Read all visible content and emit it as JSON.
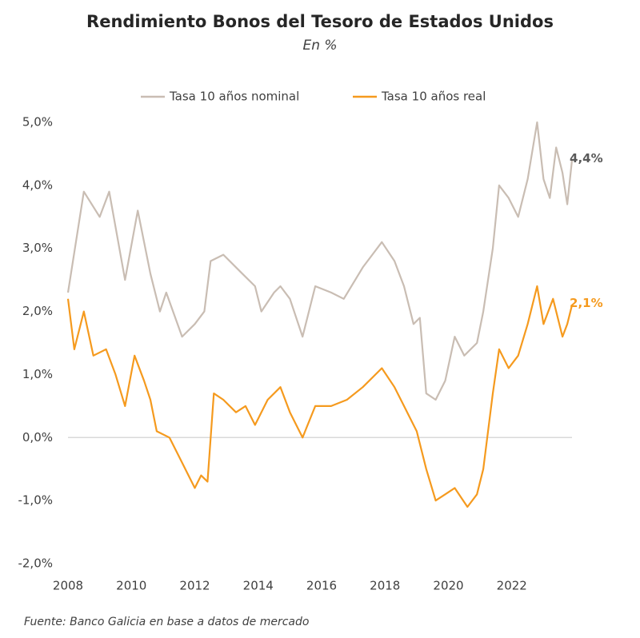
{
  "chart_data": {
    "type": "line",
    "title": "Rendimiento Bonos del Tesoro de Estados Unidos",
    "subtitle": "En %",
    "source": "Fuente: Banco Galicia en base a datos de mercado",
    "xlim": [
      2008,
      2024
    ],
    "xticks": [
      2008,
      2010,
      2012,
      2014,
      2016,
      2018,
      2020,
      2022
    ],
    "ylim": [
      -2,
      5
    ],
    "yticks": [
      {
        "value": -2,
        "label": "-2,0%"
      },
      {
        "value": -1,
        "label": "-1,0%"
      },
      {
        "value": 0,
        "label": "0,0%"
      },
      {
        "value": 1,
        "label": "1,0%"
      },
      {
        "value": 2,
        "label": "2,0%"
      },
      {
        "value": 3,
        "label": "3,0%"
      },
      {
        "value": 4,
        "label": "4,0%"
      },
      {
        "value": 5,
        "label": "5,0%"
      }
    ],
    "legend": "top",
    "series": [
      {
        "name": "Tasa 10 años nominal",
        "color": "#c9bdb3",
        "x": [
          2008.0,
          2008.5,
          2009.0,
          2009.3,
          2009.8,
          2010.2,
          2010.6,
          2010.9,
          2011.1,
          2011.6,
          2012.0,
          2012.3,
          2012.5,
          2012.9,
          2013.5,
          2013.9,
          2014.1,
          2014.5,
          2014.7,
          2015.0,
          2015.4,
          2015.8,
          2016.3,
          2016.7,
          2017.3,
          2017.6,
          2017.9,
          2018.3,
          2018.6,
          2018.9,
          2019.1,
          2019.3,
          2019.6,
          2019.9,
          2020.2,
          2020.5,
          2020.9,
          2021.1,
          2021.4,
          2021.6,
          2021.9,
          2022.2,
          2022.5,
          2022.8,
          2023.0,
          2023.2,
          2023.4,
          2023.6,
          2023.75,
          2023.9
        ],
        "values": [
          2.3,
          3.9,
          3.5,
          3.9,
          2.5,
          3.6,
          2.6,
          2.0,
          2.3,
          1.6,
          1.8,
          2.0,
          2.8,
          2.9,
          2.6,
          2.4,
          2.0,
          2.3,
          2.4,
          2.2,
          1.6,
          2.4,
          2.3,
          2.2,
          2.7,
          2.9,
          3.1,
          2.8,
          2.4,
          1.8,
          1.9,
          0.7,
          0.6,
          0.9,
          1.6,
          1.3,
          1.5,
          2.0,
          3.0,
          4.0,
          3.8,
          3.5,
          4.1,
          5.0,
          4.1,
          3.8,
          4.6,
          4.2,
          3.7,
          4.4
        ]
      },
      {
        "name": "Tasa 10 años real",
        "color": "#f59a1e",
        "x": [
          2008.0,
          2008.2,
          2008.5,
          2008.8,
          2009.2,
          2009.5,
          2009.8,
          2010.1,
          2010.4,
          2010.6,
          2010.8,
          2011.2,
          2011.5,
          2011.8,
          2012.0,
          2012.2,
          2012.4,
          2012.6,
          2012.9,
          2013.3,
          2013.6,
          2013.9,
          2014.3,
          2014.7,
          2015.0,
          2015.4,
          2015.8,
          2016.3,
          2016.8,
          2017.3,
          2017.9,
          2018.3,
          2018.7,
          2019.0,
          2019.3,
          2019.6,
          2019.9,
          2020.2,
          2020.6,
          2020.9,
          2021.1,
          2021.4,
          2021.6,
          2021.9,
          2022.2,
          2022.5,
          2022.8,
          2023.0,
          2023.3,
          2023.6,
          2023.75,
          2023.9
        ],
        "values": [
          2.2,
          1.4,
          2.0,
          1.3,
          1.4,
          1.0,
          0.5,
          1.3,
          0.9,
          0.6,
          0.1,
          0.0,
          -0.3,
          -0.6,
          -0.8,
          -0.6,
          -0.7,
          0.7,
          0.6,
          0.4,
          0.5,
          0.2,
          0.6,
          0.8,
          0.4,
          0.0,
          0.5,
          0.5,
          0.6,
          0.8,
          1.1,
          0.8,
          0.4,
          0.1,
          -0.5,
          -1.0,
          -0.9,
          -0.8,
          -1.1,
          -0.9,
          -0.5,
          0.7,
          1.4,
          1.1,
          1.3,
          1.8,
          2.4,
          1.8,
          2.2,
          1.6,
          1.8,
          2.1
        ]
      }
    ],
    "annotations": [
      {
        "text": "4,4%",
        "x": 2023.9,
        "y": 4.4,
        "color": "#595959"
      },
      {
        "text": "2,1%",
        "x": 2023.9,
        "y": 2.1,
        "color": "#f59a1e"
      }
    ]
  }
}
